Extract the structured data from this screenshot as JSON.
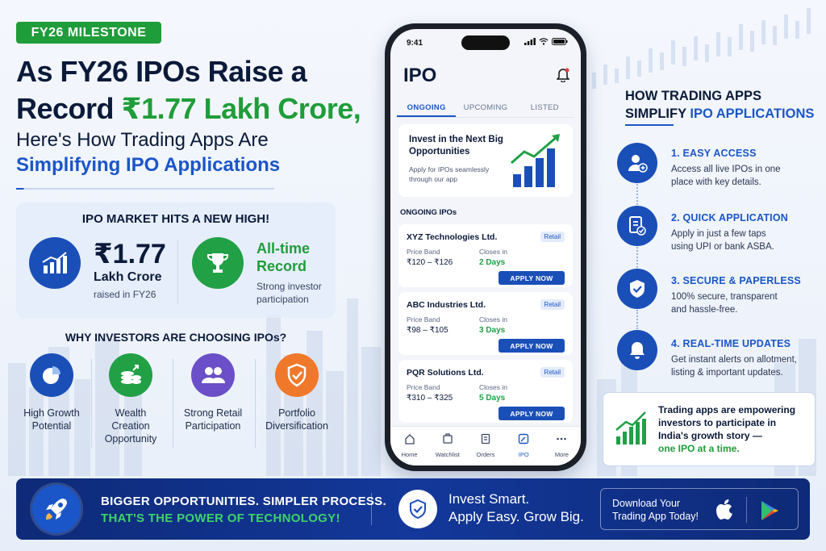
{
  "badge": "FY26 MILESTONE",
  "headline": {
    "line1": "As FY26 IPOs Raise a",
    "line2_prefix": "Record ",
    "line2_highlight": "₹1.77 Lakh Crore,",
    "sub_line1": "Here's How Trading Apps Are",
    "sub_line2": "Simplifying IPO Applications"
  },
  "market": {
    "title": "IPO MARKET HITS A NEW HIGH!",
    "amount": "₹1.77",
    "amount_unit": "Lakh Crore",
    "amount_caption": "raised in FY26",
    "record_line1": "All-time",
    "record_line2": "Record",
    "record_caption_1": "Strong investor",
    "record_caption_2": "participation"
  },
  "why": {
    "title": "WHY INVESTORS ARE CHOOSING IPOs?",
    "items": [
      {
        "line1": "High Growth",
        "line2": "Potential",
        "line3": "",
        "icon": "pie-chart-icon"
      },
      {
        "line1": "Wealth",
        "line2": "Creation",
        "line3": "Opportunity",
        "icon": "coins-icon"
      },
      {
        "line1": "Strong Retail",
        "line2": "Participation",
        "line3": "",
        "icon": "people-icon"
      },
      {
        "line1": "Portfolio",
        "line2": "Diversification",
        "line3": "",
        "icon": "shield-icon"
      }
    ]
  },
  "phone": {
    "time": "9:41",
    "title": "IPO",
    "tabs": [
      "ONGOING",
      "UPCOMING",
      "LISTED"
    ],
    "promo": {
      "title": "Invest in the Next Big Opportunities",
      "subtitle": "Apply for IPOs seamlessly through our app"
    },
    "section_label": "ONGOING IPOs",
    "price_band_label": "Price Band",
    "closes_label": "Closes in",
    "retail_label": "Retail",
    "apply_label": "APPLY NOW",
    "ipos": [
      {
        "name": "XYZ Technologies Ltd.",
        "price": "₹120 – ₹126",
        "closes": "2 Days"
      },
      {
        "name": "ABC Industries Ltd.",
        "price": "₹98 – ₹105",
        "closes": "3 Days"
      },
      {
        "name": "PQR Solutions Ltd.",
        "price": "₹310 – ₹325",
        "closes": "5 Days"
      }
    ],
    "nav": [
      "Home",
      "Watchlist",
      "Orders",
      "IPO",
      "More"
    ]
  },
  "how": {
    "title_line1": "HOW TRADING APPS",
    "title_prefix": "SIMPLIFY ",
    "title_highlight": "IPO APPLICATIONS",
    "steps": [
      {
        "title": "1. EASY ACCESS",
        "desc1": "Access all live IPOs in one",
        "desc2": "place with key details.",
        "icon": "user-add-icon"
      },
      {
        "title": "2. QUICK APPLICATION",
        "desc1": "Apply in just a few taps",
        "desc2": "using UPI or bank ASBA.",
        "icon": "document-check-icon"
      },
      {
        "title": "3. SECURE & PAPERLESS",
        "desc1": "100% secure, transparent",
        "desc2": "and hassle-free.",
        "icon": "shield-check-icon"
      },
      {
        "title": "4. REAL-TIME UPDATES",
        "desc1": "Get instant alerts on allotment,",
        "desc2": "listing & important updates.",
        "icon": "bell-icon"
      }
    ]
  },
  "empower": {
    "line1": "Trading apps are empowering",
    "line2": "investors to participate in",
    "line3": "India's growth story —",
    "line4": "one IPO at a time."
  },
  "banner": {
    "line1": "BIGGER OPPORTUNITIES. SIMPLER PROCESS.",
    "line2": "THAT'S THE POWER OF TECHNOLOGY!",
    "invest1": "Invest Smart.",
    "invest2": "Apply Easy. Grow Big.",
    "download1": "Download Your",
    "download2": "Trading App Today!"
  },
  "colors": {
    "navy": "#0b1a3a",
    "blue": "#1a56c8",
    "green": "#1f9d3a",
    "purple": "#6a4fc8",
    "orange": "#f0782a"
  }
}
